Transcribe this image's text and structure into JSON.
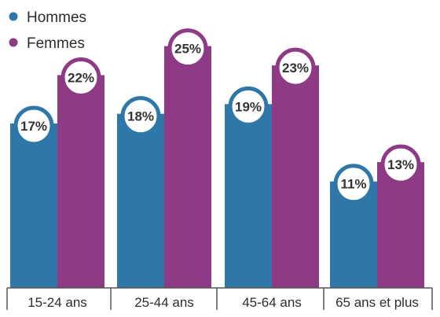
{
  "chart_data": {
    "type": "bar",
    "categories": [
      "15-24 ans",
      "25-44 ans",
      "45-64 ans",
      "65 ans et plus"
    ],
    "series": [
      {
        "name": "Hommes",
        "values": [
          17,
          18,
          19,
          11
        ],
        "labels": [
          "17%",
          "18%",
          "19%",
          "11%"
        ],
        "color": "#2e77a8"
      },
      {
        "name": "Femmes",
        "values": [
          22,
          25,
          23,
          13
        ],
        "labels": [
          "22%",
          "25%",
          "23%",
          "13%"
        ],
        "color": "#8e3a84"
      }
    ],
    "ylim": [
      0,
      27
    ],
    "legend_position": "top-left",
    "grid": false
  }
}
